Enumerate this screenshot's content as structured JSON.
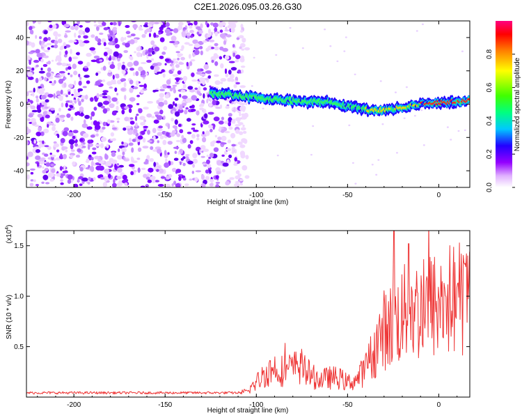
{
  "title": "C2E1.2026.095.03.26.G30",
  "chart_data": [
    {
      "type": "heatmap",
      "title": "C2E1.2026.095.03.26.G30",
      "xlabel": "Height of straight line (km)",
      "ylabel": "Frequency (Hz)",
      "xlim": [
        -226,
        17
      ],
      "ylim": [
        -50,
        50
      ],
      "xticks": [
        -200,
        -150,
        -100,
        -50,
        0
      ],
      "yticks": [
        -40,
        -20,
        0,
        20,
        40
      ],
      "colorbar": {
        "label": "Normalized spectral amplitude",
        "range": [
          0,
          1
        ],
        "ticks": [
          0.0,
          0.2,
          0.4,
          0.6,
          0.8
        ],
        "tick_labels": [
          "0.0",
          "0.2",
          "0.4",
          "0.6",
          "0.8"
        ]
      },
      "signal_track": {
        "description_points_x": [
          -120,
          -100,
          -80,
          -60,
          -45,
          -35,
          -25,
          -15,
          -5,
          5,
          15
        ],
        "frequency_hz": [
          6,
          4,
          2,
          1,
          -2,
          -4,
          -3,
          -1,
          1,
          1,
          2
        ],
        "amplitude": [
          0.3,
          0.35,
          0.4,
          0.45,
          0.5,
          0.7,
          0.75,
          0.8,
          0.9,
          0.9,
          0.95
        ]
      },
      "noise_region_x": [
        -226,
        -105
      ]
    },
    {
      "type": "line",
      "xlabel": "Height of straight line (km)",
      "ylabel": "SNR (10 * v/v)",
      "y_multiplier": "(x10",
      "y_multiplier_exp": "4",
      "y_multiplier_close": ")",
      "xlim": [
        -226,
        17
      ],
      "ylim": [
        0,
        1.65
      ],
      "xticks": [
        -200,
        -150,
        -100,
        -50,
        0
      ],
      "yticks": [
        0.5,
        1.0,
        1.5
      ],
      "ytick_labels": [
        "0.5",
        "1.0",
        "1.5"
      ],
      "series": [
        {
          "name": "SNR",
          "color": "#ee3333",
          "envelope_x": [
            -226,
            -110,
            -105,
            -100,
            -95,
            -90,
            -85,
            -80,
            -75,
            -70,
            -65,
            -60,
            -55,
            -50,
            -45,
            -40,
            -35,
            -30,
            -25,
            -20,
            -15,
            -10,
            -5,
            0,
            5,
            10,
            17
          ],
          "envelope_y": [
            0.04,
            0.04,
            0.06,
            0.15,
            0.25,
            0.3,
            0.27,
            0.3,
            0.32,
            0.22,
            0.18,
            0.2,
            0.2,
            0.15,
            0.18,
            0.3,
            0.5,
            0.7,
            0.75,
            0.85,
            0.9,
            0.9,
            0.95,
            0.95,
            1.0,
            1.02,
            1.05
          ]
        }
      ]
    }
  ]
}
